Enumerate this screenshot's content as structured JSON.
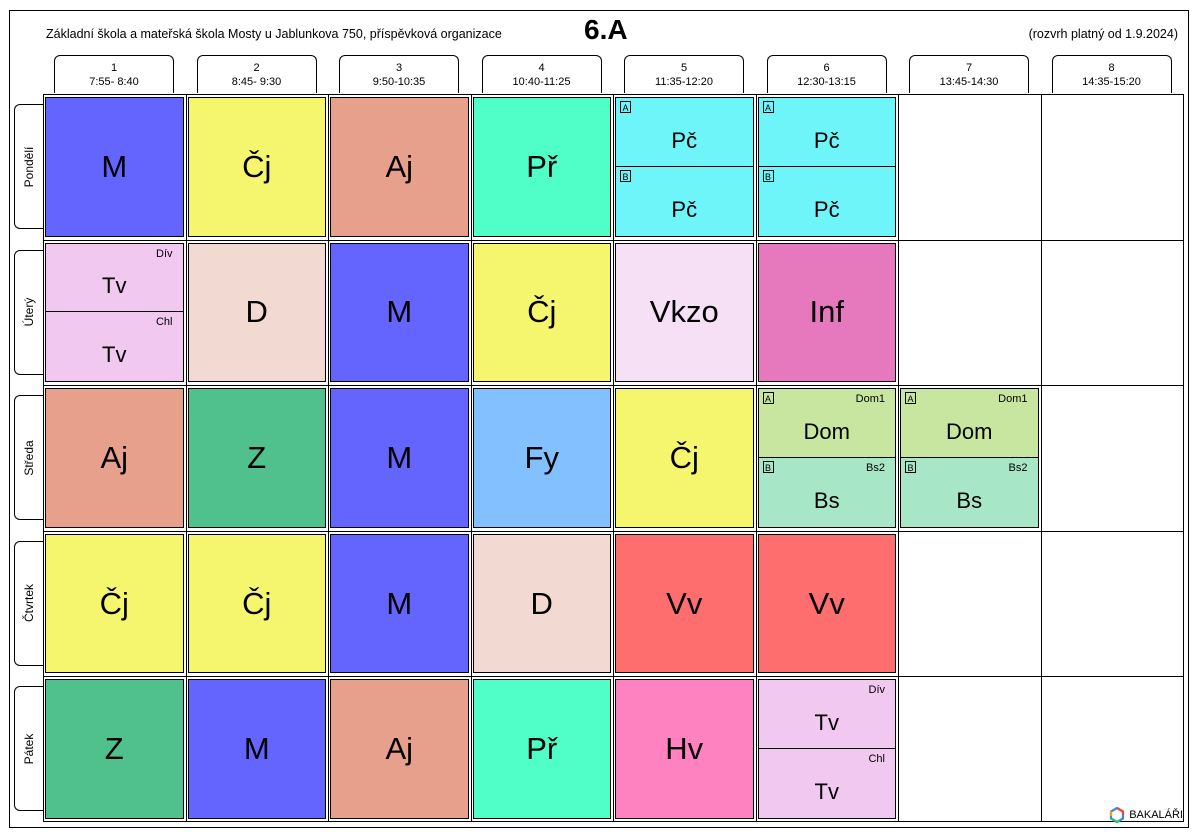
{
  "header": {
    "school": "Základní škola a mateřská škola Mosty u Jablunkova 750, příspěvková organizace",
    "class_name": "6.A",
    "validity": "(rozvrh platný od 1.9.2024)"
  },
  "periods": [
    {
      "num": "1",
      "time": "7:55- 8:40"
    },
    {
      "num": "2",
      "time": "8:45- 9:30"
    },
    {
      "num": "3",
      "time": "9:50-10:35"
    },
    {
      "num": "4",
      "time": "10:40-11:25"
    },
    {
      "num": "5",
      "time": "11:35-12:20"
    },
    {
      "num": "6",
      "time": "12:30-13:15"
    },
    {
      "num": "7",
      "time": "13:45-14:30"
    },
    {
      "num": "8",
      "time": "14:35-15:20"
    }
  ],
  "days": [
    "Pondělí",
    "Úterý",
    "Středa",
    "Čtvrtek",
    "Pátek"
  ],
  "schedule": [
    [
      {
        "subject": "M",
        "color": "#6464FF"
      },
      {
        "subject": "Čj",
        "color": "#F5F56E"
      },
      {
        "subject": "Aj",
        "color": "#E6A08C"
      },
      {
        "subject": "Př",
        "color": "#50FFC8"
      },
      {
        "split": [
          {
            "subject": "Pč",
            "group": "A",
            "room": "",
            "color": "#6EF5FA"
          },
          {
            "subject": "Pč",
            "group": "B",
            "room": "",
            "color": "#6EF5FA"
          }
        ]
      },
      {
        "split": [
          {
            "subject": "Pč",
            "group": "A",
            "room": "",
            "color": "#6EF5FA"
          },
          {
            "subject": "Pč",
            "group": "B",
            "room": "",
            "color": "#6EF5FA"
          }
        ]
      },
      null,
      null
    ],
    [
      {
        "split": [
          {
            "subject": "Tv",
            "group": "",
            "room": "Dív",
            "color": "#F0C8F0"
          },
          {
            "subject": "Tv",
            "group": "",
            "room": "Chl",
            "color": "#F0C8F0"
          }
        ]
      },
      {
        "subject": "D",
        "color": "#F2D9D2"
      },
      {
        "subject": "M",
        "color": "#6464FF"
      },
      {
        "subject": "Čj",
        "color": "#F5F56E"
      },
      {
        "subject": "Vkzo",
        "color": "#F5E0F5"
      },
      {
        "subject": "Inf",
        "color": "#E678BE"
      },
      null,
      null
    ],
    [
      {
        "subject": "Aj",
        "color": "#E6A08C"
      },
      {
        "subject": "Z",
        "color": "#50C08C"
      },
      {
        "subject": "M",
        "color": "#6464FF"
      },
      {
        "subject": "Fy",
        "color": "#82C0FF"
      },
      {
        "subject": "Čj",
        "color": "#F5F56E"
      },
      {
        "split": [
          {
            "subject": "Dom",
            "group": "A",
            "room": "Dom1",
            "color": "#C8E6A0"
          },
          {
            "subject": "Bs",
            "group": "B",
            "room": "Bs2",
            "color": "#A8E6C8"
          }
        ]
      },
      {
        "split": [
          {
            "subject": "Dom",
            "group": "A",
            "room": "Dom1",
            "color": "#C8E6A0"
          },
          {
            "subject": "Bs",
            "group": "B",
            "room": "Bs2",
            "color": "#A8E6C8"
          }
        ]
      },
      null
    ],
    [
      {
        "subject": "Čj",
        "color": "#F5F56E"
      },
      {
        "subject": "Čj",
        "color": "#F5F56E"
      },
      {
        "subject": "M",
        "color": "#6464FF"
      },
      {
        "subject": "D",
        "color": "#F2D9D2"
      },
      {
        "subject": "Vv",
        "color": "#FF6E6E"
      },
      {
        "subject": "Vv",
        "color": "#FF6E6E"
      },
      null,
      null
    ],
    [
      {
        "subject": "Z",
        "color": "#50C08C"
      },
      {
        "subject": "M",
        "color": "#6464FF"
      },
      {
        "subject": "Aj",
        "color": "#E6A08C"
      },
      {
        "subject": "Př",
        "color": "#50FFC8"
      },
      {
        "subject": "Hv",
        "color": "#FF82C0"
      },
      {
        "split": [
          {
            "subject": "Tv",
            "group": "",
            "room": "Dív",
            "color": "#F0C8F0"
          },
          {
            "subject": "Tv",
            "group": "",
            "room": "Chl",
            "color": "#F0C8F0"
          }
        ]
      },
      null,
      null
    ]
  ],
  "logo": {
    "text": "BAKALÁŘI",
    "icon": "bakalari-logo-icon"
  }
}
